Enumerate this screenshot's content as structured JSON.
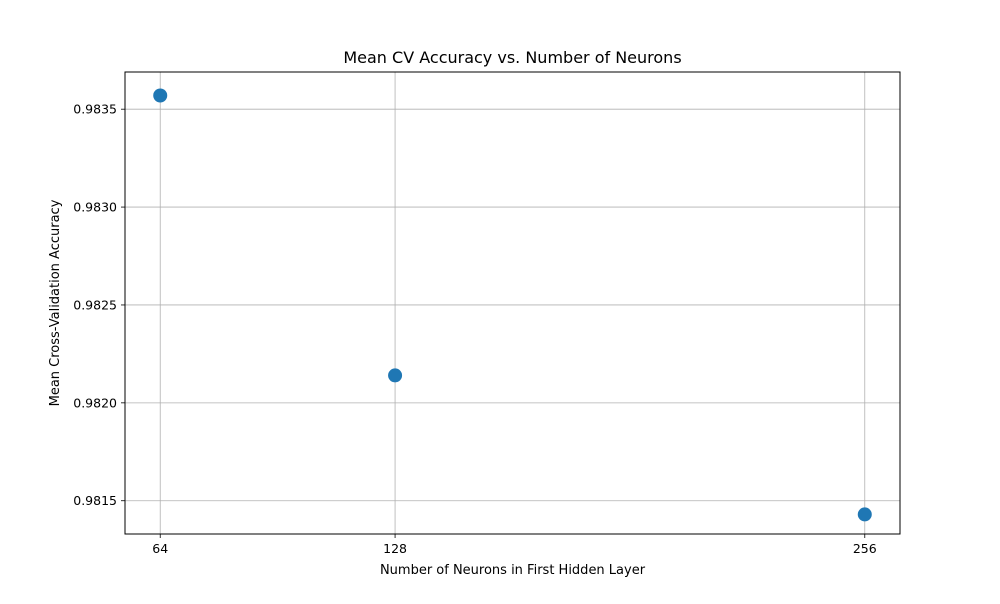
{
  "chart_data": {
    "type": "scatter",
    "title": "Mean CV Accuracy vs. Number of Neurons",
    "xlabel": "Number of Neurons in First Hidden Layer",
    "ylabel": "Mean Cross-Validation Accuracy",
    "x_ticks": [
      "64",
      "128",
      "256"
    ],
    "y_ticks": [
      "0.9815",
      "0.9820",
      "0.9825",
      "0.9830",
      "0.9835"
    ],
    "xlim": [
      54.4,
      265.6
    ],
    "ylim": [
      0.98133,
      0.98369
    ],
    "grid": true,
    "series": [
      {
        "color": "#1f77b4",
        "points": [
          {
            "x": 64,
            "y": 0.98357
          },
          {
            "x": 128,
            "y": 0.98214
          },
          {
            "x": 256,
            "y": 0.98143
          }
        ]
      }
    ]
  }
}
